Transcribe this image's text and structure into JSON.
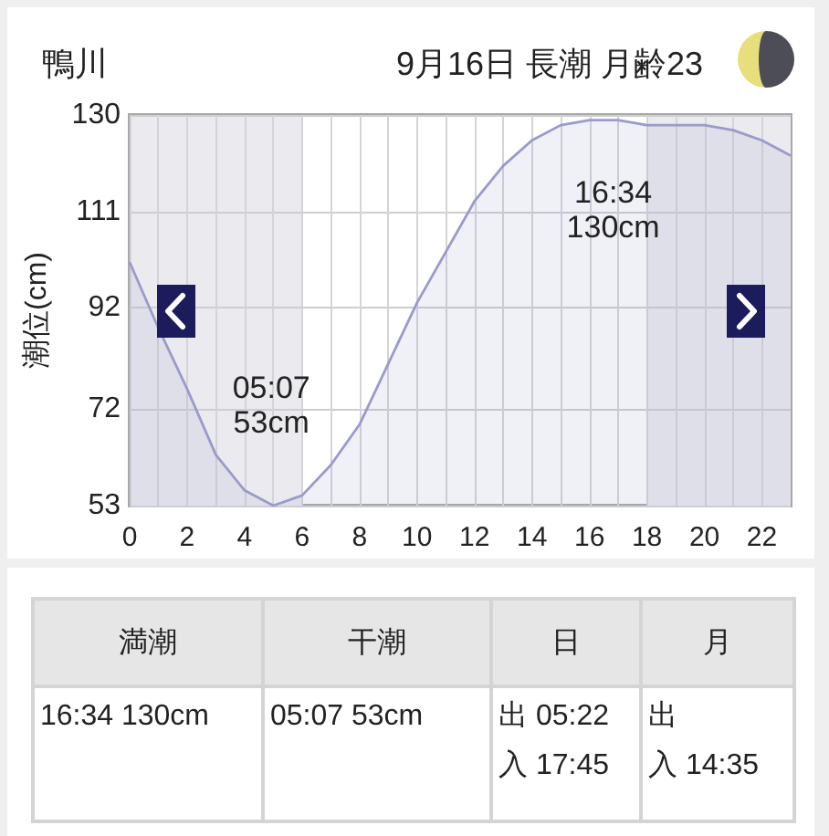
{
  "chart_data": [
    {
      "type": "area",
      "title": "鴨川",
      "subtitle": "9月16日 長潮 月齢23",
      "ylabel": "潮位(cm)",
      "x": [
        0,
        1,
        2,
        3,
        4,
        5,
        6,
        7,
        8,
        9,
        10,
        11,
        12,
        13,
        14,
        15,
        16,
        17,
        18,
        19,
        20,
        21,
        22,
        23
      ],
      "values": [
        101,
        88,
        76,
        63,
        56,
        53,
        55,
        61,
        69,
        81,
        93,
        103,
        113,
        120,
        125,
        128,
        129,
        129,
        128,
        128,
        128,
        127,
        125,
        122
      ],
      "color": "#9a9acc",
      "marker": "none",
      "grid": true,
      "xlim": [
        0,
        23
      ],
      "xticks": [
        0,
        {
          "value": 1,
          "label": null
        },
        2,
        {
          "value": 3,
          "label": null
        },
        4,
        {
          "value": 5,
          "label": null
        },
        6,
        {
          "value": 7,
          "label": null
        },
        8,
        {
          "value": 9,
          "label": null
        },
        10,
        {
          "value": 11,
          "label": null
        },
        12,
        {
          "value": 13,
          "label": null
        },
        14,
        {
          "value": 15,
          "label": null
        },
        16,
        {
          "value": 17,
          "label": null
        },
        18,
        {
          "value": 19,
          "label": null
        },
        20,
        {
          "value": 21,
          "label": null
        },
        22
      ],
      "ylim": [
        53,
        130
      ],
      "yticks": [
        53,
        72,
        92,
        111,
        130
      ],
      "bands": [
        {
          "axis": "x",
          "from": 0,
          "to": 6,
          "color": "#ebebef"
        },
        {
          "axis": "x",
          "from": 18,
          "to": 23,
          "color": "#ebebef"
        }
      ],
      "annotations": [
        {
          "text": "05:07\n53cm",
          "x": 5.12,
          "y": 53
        },
        {
          "text": "16:34\n130cm",
          "x": 16.57,
          "y": 130
        }
      ]
    },
    {
      "type": "other",
      "categories": [
        "満潮",
        "干潮",
        "日",
        "月"
      ],
      "annotations": [
        "16:34 130cm",
        "05:07 53cm",
        "出 05:22",
        "出",
        "入 17:45",
        "入 14:35"
      ]
    }
  ]
}
